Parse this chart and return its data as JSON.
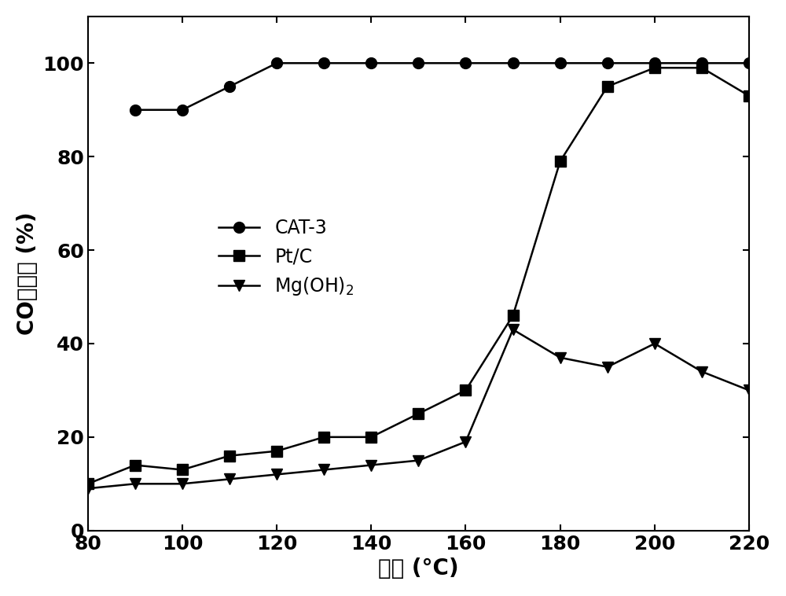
{
  "cat3_x": [
    90,
    100,
    110,
    120,
    130,
    140,
    150,
    160,
    170,
    180,
    190,
    200,
    210,
    220
  ],
  "cat3_y": [
    90,
    90,
    95,
    100,
    100,
    100,
    100,
    100,
    100,
    100,
    100,
    100,
    100,
    100
  ],
  "ptc_x": [
    80,
    90,
    100,
    110,
    120,
    130,
    140,
    150,
    160,
    170,
    180,
    190,
    200,
    210,
    220
  ],
  "ptc_y": [
    10,
    14,
    13,
    16,
    17,
    20,
    20,
    25,
    30,
    46,
    79,
    95,
    99,
    99,
    93
  ],
  "mgoh_x": [
    80,
    90,
    100,
    110,
    120,
    130,
    140,
    150,
    160,
    170,
    180,
    190,
    200,
    210,
    220
  ],
  "mgoh_y": [
    9,
    10,
    10,
    11,
    12,
    13,
    14,
    15,
    19,
    43,
    37,
    35,
    40,
    34,
    30
  ],
  "xlabel": "温度 (°C)",
  "ylabel": "CO转化率 (%)",
  "legend_labels": [
    "CAT-3",
    "Pt/C",
    "Mg(OH)$_2$"
  ],
  "xlim": [
    80,
    220
  ],
  "ylim": [
    0,
    110
  ],
  "xticks": [
    80,
    100,
    120,
    140,
    160,
    180,
    200,
    220
  ],
  "yticks": [
    0,
    20,
    40,
    60,
    80,
    100
  ],
  "line_color": "#000000",
  "background_color": "#ffffff",
  "marker_circle": "o",
  "marker_square": "s",
  "marker_triangle": "v",
  "markersize": 10,
  "linewidth": 1.8,
  "label_fontsize": 20,
  "tick_fontsize": 18,
  "legend_fontsize": 17
}
